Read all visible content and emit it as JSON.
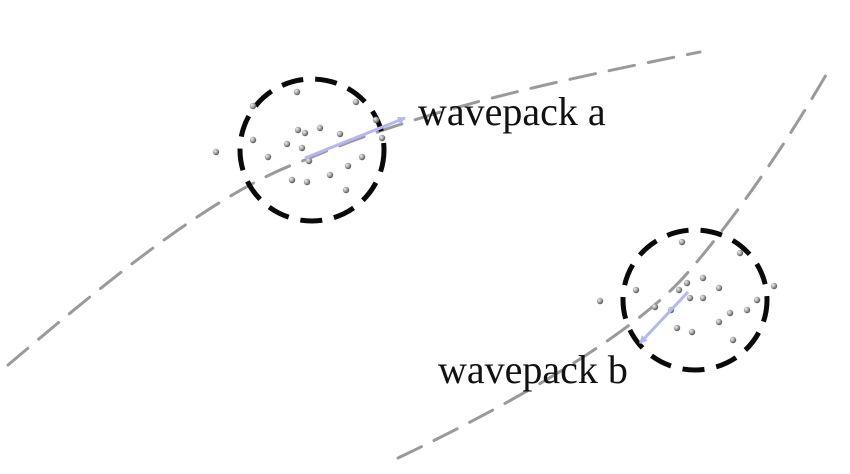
{
  "labels": {
    "wavepack_a": "wavepack a",
    "wavepack_b": "wavepack b"
  },
  "colors": {
    "trajectory": "#9a9a9a",
    "circle": "#0a0a0a",
    "arrow": "#b7b7f0",
    "particle_light": "#f0f0f0",
    "particle_dark": "#5a5a5a",
    "label": "#111111"
  },
  "icons": {
    "particle": "small-shaded-sphere",
    "momentum_arrow": "arrow-icon"
  }
}
